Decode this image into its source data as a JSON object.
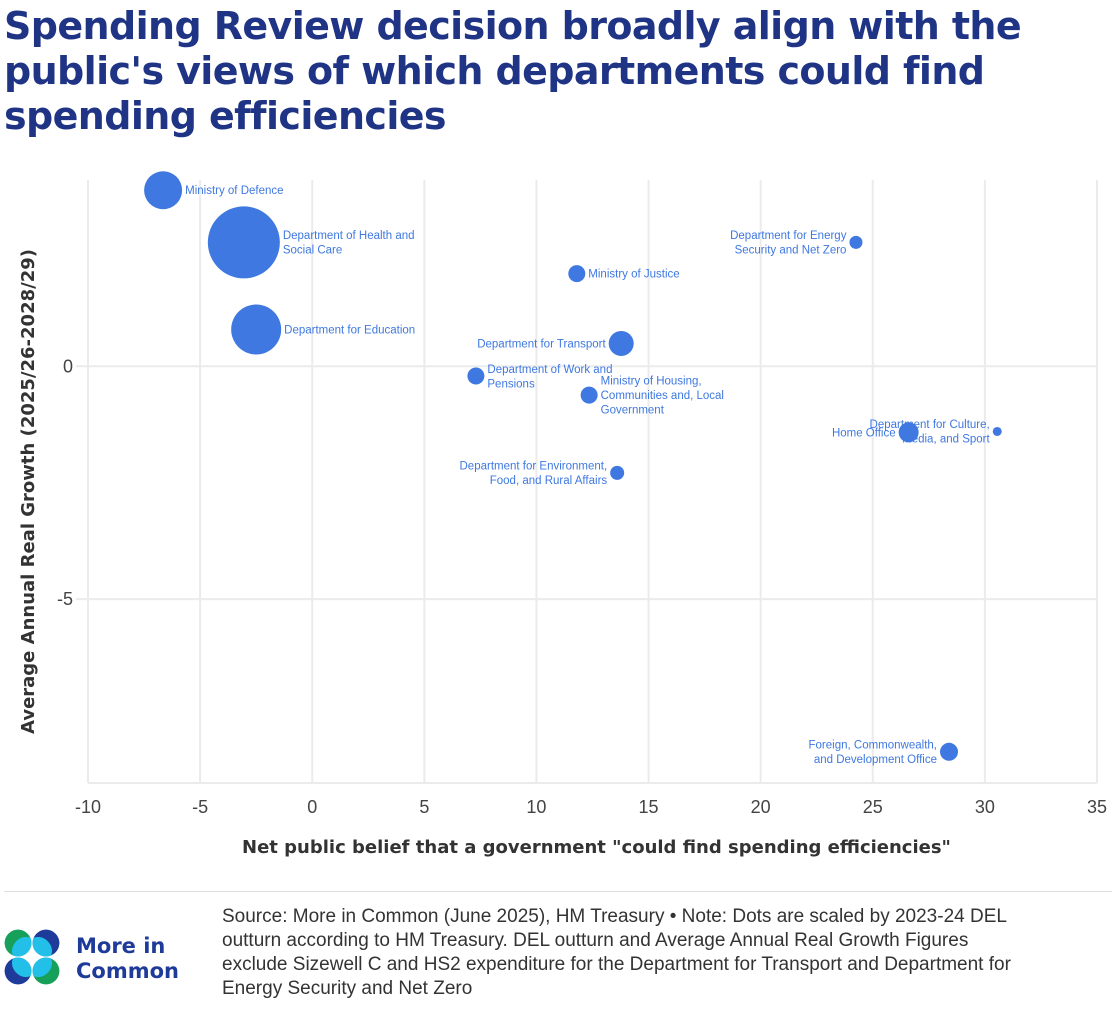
{
  "title": "Spending Review decision broadly align with the public's views of which departments could find spending efficiencies",
  "colors": {
    "title": "#1f3485",
    "point": "#3e78e0",
    "label": "#3e78e0",
    "grid": "#ebebeb",
    "logo_navy": "#1f3b9a",
    "logo_cyan": "#22bfe8",
    "logo_green": "#16a05a"
  },
  "chart_data": {
    "type": "scatter",
    "title": "Spending Review decision broadly align with the public's views of which departments could find spending efficiencies",
    "xlabel": "Net public belief that a government \"could find spending efficiencies\"",
    "ylabel": "Average Annual Real Growth (2025/26-2028/29)",
    "xlim": [
      -10,
      35
    ],
    "ylim": [
      -8.95,
      4.0
    ],
    "xticks": [
      -10,
      -5,
      0,
      5,
      10,
      15,
      20,
      25,
      30,
      35
    ],
    "yticks": [
      0,
      -5
    ],
    "grid": true,
    "size_encoding": "2023-24 DEL outturn (relative)",
    "points": [
      {
        "name": "Ministry of Defence",
        "label_lines": [
          "Ministry of Defence"
        ],
        "x": -6.65,
        "y": 3.78,
        "size": 19,
        "label_side": "right"
      },
      {
        "name": "Department of Health and Social Care",
        "label_lines": [
          "Department of Health and",
          "Social Care"
        ],
        "x": -3.05,
        "y": 2.66,
        "size": 36,
        "label_side": "right"
      },
      {
        "name": "Department for Education",
        "label_lines": [
          "Department for Education"
        ],
        "x": -2.5,
        "y": 0.79,
        "size": 25,
        "label_side": "right"
      },
      {
        "name": "Ministry of Justice",
        "label_lines": [
          "Ministry of Justice"
        ],
        "x": 11.8,
        "y": 1.99,
        "size": 8.5,
        "label_side": "right"
      },
      {
        "name": "Department for Transport",
        "label_lines": [
          "Department for Transport"
        ],
        "x": 13.78,
        "y": 0.49,
        "size": 12.5,
        "label_side": "left"
      },
      {
        "name": "Department of Work and Pensions",
        "label_lines": [
          "Department of Work and",
          "Pensions"
        ],
        "x": 7.3,
        "y": -0.21,
        "size": 8.5,
        "label_side": "right"
      },
      {
        "name": "Ministry of Housing, Communities and, Local Government",
        "label_lines": [
          "Ministry of Housing,",
          "Communities and, Local",
          "Government"
        ],
        "x": 12.35,
        "y": -0.62,
        "size": 8.5,
        "label_side": "right"
      },
      {
        "name": "Department for Environment, Food, and Rural Affairs",
        "label_lines": [
          "Department for Environment,",
          "Food, and Rural Affairs"
        ],
        "x": 13.6,
        "y": -2.29,
        "size": 7,
        "label_side": "left"
      },
      {
        "name": "Department for Energy Security and Net Zero",
        "label_lines": [
          "Department for Energy",
          "Security and Net Zero"
        ],
        "x": 24.25,
        "y": 2.66,
        "size": 6.5,
        "label_side": "left"
      },
      {
        "name": "Home Office",
        "label_lines": [
          "Home Office"
        ],
        "x": 26.6,
        "y": -1.42,
        "size": 10,
        "label_side": "left"
      },
      {
        "name": "Department for Culture, Media, and Sport",
        "label_lines": [
          "Department for Culture,",
          "Media, and Sport"
        ],
        "x": 30.55,
        "y": -1.4,
        "size": 4.5,
        "label_side": "left"
      },
      {
        "name": "Foreign, Commonwealth, and Development Office",
        "label_lines": [
          "Foreign, Commonwealth,",
          "and Development Office"
        ],
        "x": 28.4,
        "y": -8.28,
        "size": 9,
        "label_side": "left"
      }
    ]
  },
  "footer": {
    "logo_line1": "More in",
    "logo_line2": "Common",
    "note_lines": [
      "Source: More in Common (June 2025), HM Treasury • Note: Dots are scaled by 2023-24 DEL",
      "outturn according to HM Treasury. DEL outturn and Average Annual Real Growth Figures",
      "exclude Sizewell C and HS2 expenditure for the Department for Transport and Department for",
      "Energy Security and Net Zero"
    ]
  }
}
